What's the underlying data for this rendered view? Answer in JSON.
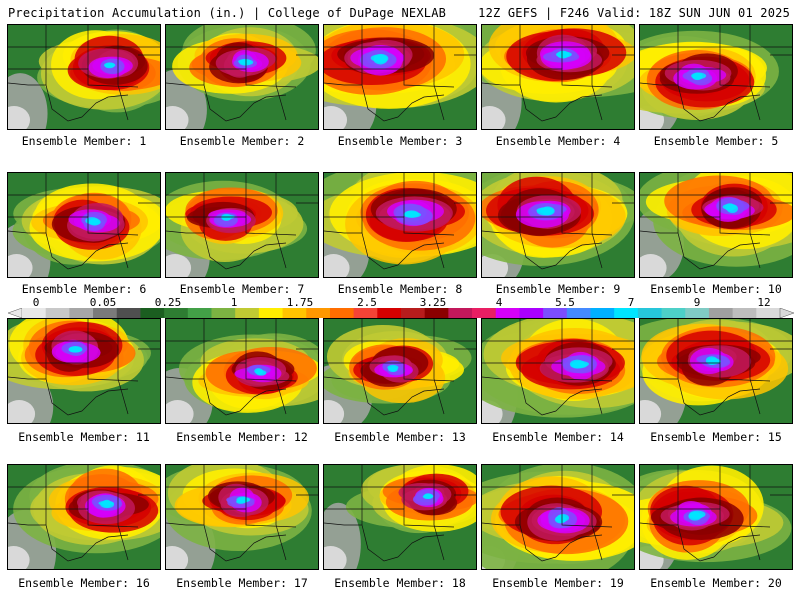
{
  "header": {
    "left_title": "Precipitation Accumulation (in.) | College of DuPage NEXLAB",
    "right_title": "12Z GEFS | F246 Valid: 18Z SUN JUN 01 2025"
  },
  "members": [
    {
      "label": "Ensemble Member: 1"
    },
    {
      "label": "Ensemble Member: 2"
    },
    {
      "label": "Ensemble Member: 3"
    },
    {
      "label": "Ensemble Member: 4"
    },
    {
      "label": "Ensemble Member: 5"
    },
    {
      "label": "Ensemble Member: 6"
    },
    {
      "label": "Ensemble Member: 7"
    },
    {
      "label": "Ensemble Member: 8"
    },
    {
      "label": "Ensemble Member: 9"
    },
    {
      "label": "Ensemble Member: 10"
    },
    {
      "label": "Ensemble Member: 11"
    },
    {
      "label": "Ensemble Member: 12"
    },
    {
      "label": "Ensemble Member: 13"
    },
    {
      "label": "Ensemble Member: 14"
    },
    {
      "label": "Ensemble Member: 15"
    },
    {
      "label": "Ensemble Member: 16"
    },
    {
      "label": "Ensemble Member: 17"
    },
    {
      "label": "Ensemble Member: 18"
    },
    {
      "label": "Ensemble Member: 19"
    },
    {
      "label": "Ensemble Member: 20"
    }
  ],
  "colorbar": {
    "labels": [
      "0",
      "0.05",
      "0.25",
      "1",
      "1.75",
      "2.5",
      "3.25",
      "4",
      "5.5",
      "7",
      "9",
      "12"
    ],
    "colors": [
      "#e8e8e8",
      "#c8c8c8",
      "#a6a6a6",
      "#7a7a7a",
      "#4f4f4f",
      "#1b5e20",
      "#2e7d32",
      "#43a047",
      "#7cb342",
      "#c0ca33",
      "#ffee00",
      "#ffc400",
      "#ff9800",
      "#ff6d00",
      "#f44336",
      "#d50000",
      "#b71c1c",
      "#8b0000",
      "#c2185b",
      "#e91e63",
      "#d500f9",
      "#aa00ff",
      "#7c4dff",
      "#448aff",
      "#00b0ff",
      "#00e5ff",
      "#26c6da",
      "#4dd0c8",
      "#80cbc4",
      "#a0a0a0",
      "#bdbdbd",
      "#d9d9d9"
    ]
  }
}
